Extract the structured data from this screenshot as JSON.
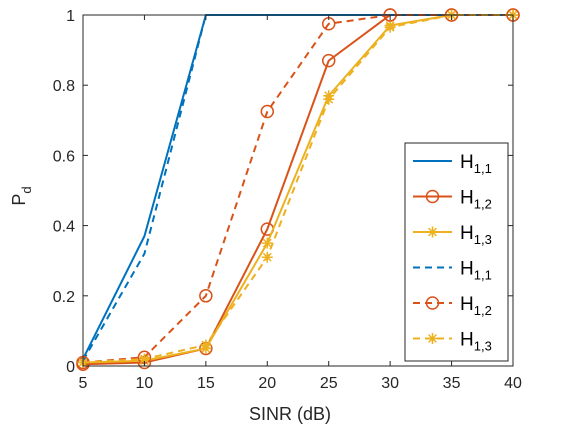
{
  "chart_data": {
    "type": "line",
    "xlabel": "SINR (dB)",
    "ylabel": {
      "main": "P",
      "sub": "d"
    },
    "x": [
      5,
      10,
      15,
      20,
      25,
      30,
      35,
      40
    ],
    "xlim": [
      5,
      40
    ],
    "ylim": [
      0,
      1
    ],
    "xticks": [
      "5",
      "10",
      "15",
      "20",
      "25",
      "30",
      "35",
      "40"
    ],
    "yticks": [
      "0",
      "0.2",
      "0.4",
      "0.6",
      "0.8",
      "1"
    ],
    "grid": false,
    "legend_position": "bottom-right",
    "colors": {
      "blue": "#0072BD",
      "orange": "#D95319",
      "yellow": "#EDB120"
    },
    "series": [
      {
        "label_main": "H",
        "label_sub": "1,1",
        "color": "#0072BD",
        "dash": "solid",
        "marker": "none",
        "values": [
          0.02,
          0.37,
          1.0,
          1.0,
          1.0,
          1.0,
          1.0,
          1.0
        ]
      },
      {
        "label_main": "H",
        "label_sub": "1,2",
        "color": "#D95319",
        "dash": "solid",
        "marker": "circle",
        "values": [
          0.005,
          0.01,
          0.05,
          0.39,
          0.87,
          1.0,
          1.0,
          1.0
        ]
      },
      {
        "label_main": "H",
        "label_sub": "1,3",
        "color": "#EDB120",
        "dash": "solid",
        "marker": "asterisk",
        "values": [
          0.01,
          0.015,
          0.05,
          0.35,
          0.77,
          0.97,
          1.0,
          1.0
        ]
      },
      {
        "label_main": "H",
        "label_sub": "1,1",
        "color": "#0072BD",
        "dash": "dashed",
        "marker": "none",
        "values": [
          0.015,
          0.32,
          1.0,
          1.0,
          1.0,
          1.0,
          1.0,
          1.0
        ]
      },
      {
        "label_main": "H",
        "label_sub": "1,2",
        "color": "#D95319",
        "dash": "dashed",
        "marker": "circle",
        "values": [
          0.01,
          0.025,
          0.2,
          0.725,
          0.975,
          1.0,
          1.0,
          1.0
        ]
      },
      {
        "label_main": "H",
        "label_sub": "1,3",
        "color": "#EDB120",
        "dash": "dashed",
        "marker": "asterisk",
        "values": [
          0.01,
          0.02,
          0.06,
          0.31,
          0.76,
          0.965,
          1.0,
          1.0
        ]
      }
    ]
  }
}
